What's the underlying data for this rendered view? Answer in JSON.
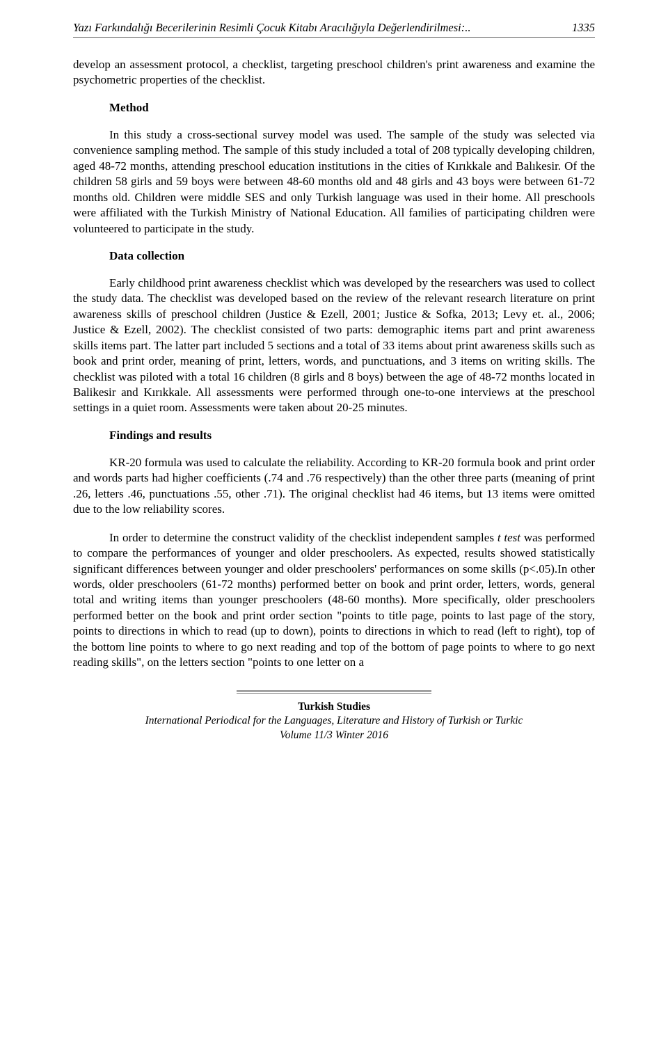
{
  "header": {
    "running_title": "Yazı Farkındalığı Becerilerinin Resimli Çocuk Kitabı Aracılığıyla Değerlendirilmesi:..",
    "page_number": "1335"
  },
  "intro": "develop an assessment protocol, a checklist, targeting preschool children's print awareness and examine the psychometric properties of the checklist.",
  "sections": {
    "method": {
      "heading": "Method",
      "p1": "In this study a cross-sectional survey model was used. The sample of the study was selected via convenience sampling method. The sample of this study included a total of 208 typically developing children, aged 48-72 months, attending preschool education institutions in the cities of Kırıkkale and Balıkesir. Of the children 58 girls and 59 boys were between 48-60 months old and 48 girls and 43 boys were between 61-72 months old. Children were middle SES and only Turkish language was used in their home. All preschools were affiliated with the Turkish Ministry of National Education. All families of participating children were volunteered to participate in the study."
    },
    "data_collection": {
      "heading": "Data collection",
      "p1": "Early childhood print awareness checklist which was developed by the researchers was used to collect the study data. The checklist was developed based on the review of the relevant research literature on print awareness skills of preschool children (Justice & Ezell, 2001; Justice & Sofka, 2013; Levy et. al., 2006; Justice & Ezell, 2002). The checklist consisted of two parts: demographic items part and print awareness skills items part. The latter part included 5 sections and a total of 33 items about print awareness skills such as book and print order, meaning of print, letters, words, and punctuations, and 3 items on writing skills. The checklist was piloted with a total 16 children (8 girls and 8 boys) between the age of 48-72 months located in Balikesir and Kırıkkale. All assessments were performed through one-to-one interviews at the preschool settings in a quiet room. Assessments were taken about 20-25 minutes."
    },
    "findings": {
      "heading": "Findings and results",
      "p1": "KR-20 formula was used to calculate the reliability. According to KR-20 formula book and print order and words parts had higher coefficients (.74 and .76 respectively) than the other three parts (meaning of print .26, letters .46, punctuations .55, other .71). The original checklist had 46 items, but 13 items were omitted due to the low reliability scores.",
      "p2_pre": "In order to determine the construct validity of the checklist independent samples ",
      "p2_ital": "t test",
      "p2_post": " was performed to compare the performances of younger and older preschoolers. As expected, results showed statistically significant differences between younger and older preschoolers' performances on some skills (p<.05).In other words, older preschoolers (61-72 months) performed better on book and print order, letters, words, general total and writing items than younger preschoolers (48-60 months). More specifically, older preschoolers performed better on the book and print order section \"points to  title page, points to last page of the story, points to directions in which to read (up to down), points to directions in which to read (left to right), top of the bottom line points to where to go next reading and top of the bottom of page points to where to go next reading skills\", on the letters section \"points to one letter on a"
    }
  },
  "footer": {
    "title": "Turkish Studies",
    "line1": "International Periodical for the Languages, Literature and History of Turkish or Turkic",
    "line2": "Volume 11/3 Winter 2016"
  }
}
